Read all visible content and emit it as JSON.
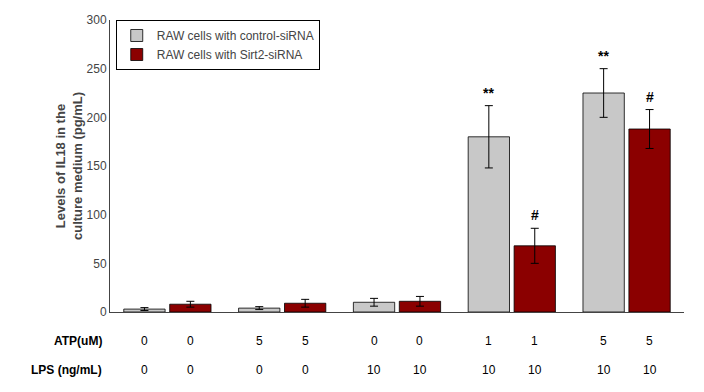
{
  "chart_data": {
    "type": "bar",
    "categories": [
      null,
      null,
      null,
      null,
      null
    ],
    "series": [
      {
        "name": "RAW cells with control-siRNA",
        "color": "#c8c8c8",
        "values": [
          3,
          4,
          10,
          180,
          225
        ],
        "errors": [
          1.5,
          1.5,
          4,
          32,
          25
        ]
      },
      {
        "name": "RAW cells with Sirt2-siRNA",
        "color": "#8b0000",
        "values": [
          8,
          9,
          11,
          68,
          188
        ],
        "errors": [
          3,
          4,
          5,
          18,
          20
        ]
      }
    ],
    "ylabel": "Levels of IL18 in the\nculture medium (pg/mL)",
    "ylim": [
      0,
      300
    ],
    "yticks": [
      0,
      50,
      100,
      150,
      200,
      250,
      300
    ],
    "grid": false,
    "legend": "upper left",
    "tick_labels": "y",
    "annotations": [
      {
        "text": "**",
        "category": 3,
        "series": "RAW cells with control-siRNA"
      },
      {
        "text": "**",
        "category": 4,
        "series": "RAW cells with control-siRNA"
      },
      {
        "text": "#",
        "category": 3,
        "series": "RAW cells with Sirt2-siRNA"
      },
      {
        "text": "#",
        "category": 4,
        "series": "RAW cells with Sirt2-siRNA"
      }
    ],
    "x_rows": [
      {
        "label": "ATP(uM)",
        "values": [
          "0",
          "0",
          "5",
          "5",
          "0",
          "0",
          "1",
          "1",
          "5",
          "5"
        ]
      },
      {
        "label": "LPS (ng/mL)",
        "values": [
          "0",
          "0",
          "0",
          "0",
          "10",
          "10",
          "10",
          "10",
          "10",
          "10"
        ]
      }
    ]
  }
}
